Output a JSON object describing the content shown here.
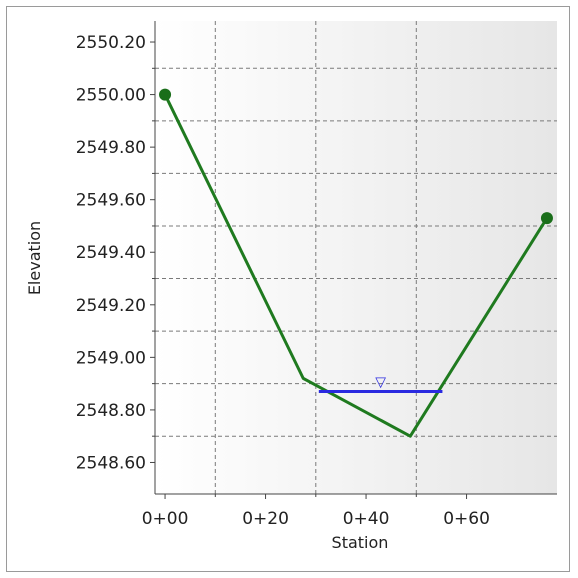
{
  "chart_data": {
    "type": "line",
    "title": "",
    "xlabel": "Station",
    "ylabel": "Elevation",
    "x_tick_labels": [
      "0+00",
      "0+20",
      "0+40",
      "0+60"
    ],
    "x_tick_values": [
      0,
      20,
      40,
      60
    ],
    "y_tick_labels": [
      "2548.60",
      "2548.80",
      "2549.00",
      "2549.20",
      "2549.40",
      "2549.60",
      "2549.80",
      "2550.00",
      "2550.20"
    ],
    "y_tick_values": [
      2548.6,
      2548.8,
      2549.0,
      2549.2,
      2549.4,
      2549.6,
      2549.8,
      2550.0,
      2550.2
    ],
    "xlim": [
      -2,
      78
    ],
    "ylim": [
      2548.48,
      2550.28
    ],
    "grid": true,
    "series": [
      {
        "points": [
          {
            "x": 0,
            "y": 2550.0
          },
          {
            "x": 27.5,
            "y": 2548.92
          },
          {
            "x": 48.8,
            "y": 2548.7
          },
          {
            "x": 76,
            "y": 2549.53
          }
        ],
        "color": "#1f7a1f"
      }
    ],
    "endpoints": [
      {
        "x": 0,
        "y": 2550.0
      },
      {
        "x": 76,
        "y": 2549.53
      }
    ],
    "water_surface": {
      "x_start": 30.6,
      "x_end": 55.2,
      "y": 2548.87,
      "color": "#2a2ae0",
      "symbol": "▽"
    }
  }
}
